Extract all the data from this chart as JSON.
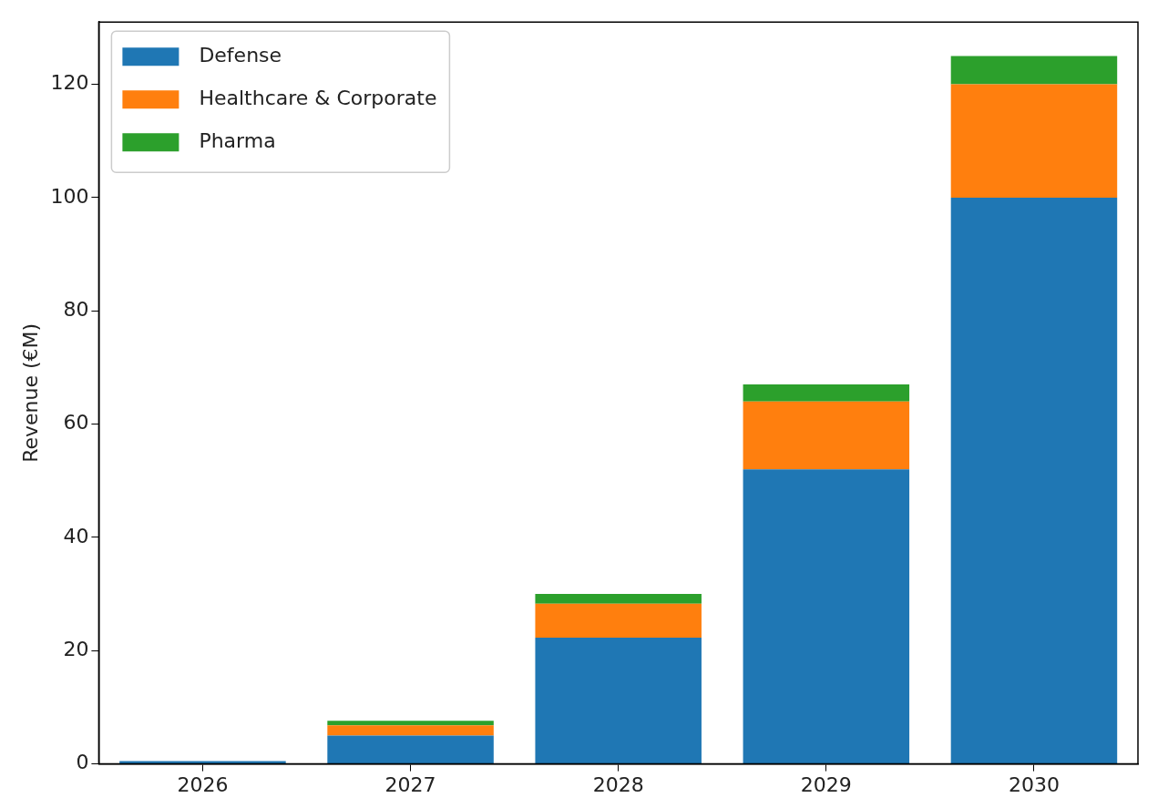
{
  "chart_data": {
    "type": "bar",
    "ylabel": "Revenue (€M)",
    "categories": [
      "2026",
      "2027",
      "2028",
      "2029",
      "2030"
    ],
    "stacked": true,
    "series": [
      {
        "name": "Defense",
        "color": "#1f77b4",
        "values": [
          0.5,
          5,
          22.3,
          52,
          100
        ]
      },
      {
        "name": "Healthcare & Corporate",
        "color": "#ff7f0e",
        "values": [
          0,
          1.8,
          6,
          12,
          20
        ]
      },
      {
        "name": "Pharma",
        "color": "#2ca02c",
        "values": [
          0,
          0.8,
          1.7,
          3,
          5
        ]
      }
    ],
    "ylim": [
      0,
      131
    ],
    "yticks": [
      0,
      20,
      40,
      60,
      80,
      100,
      120
    ],
    "grid": false,
    "legend": "top left"
  }
}
